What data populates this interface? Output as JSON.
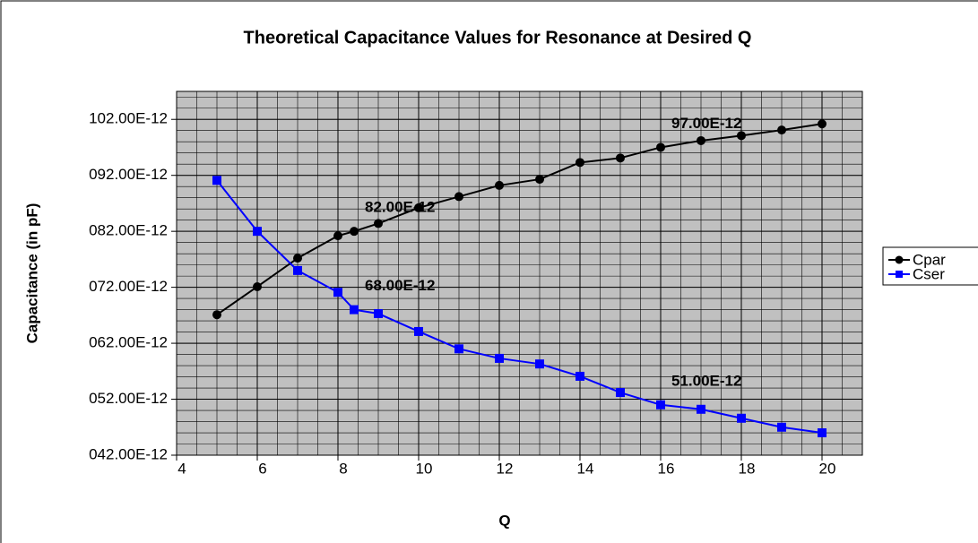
{
  "chart_data": {
    "type": "line",
    "title": "Theoretical Capacitance Values for Resonance at Desired Q",
    "x_label": "Q",
    "y_label": "Capacitance (in pF)",
    "x": [
      5,
      6,
      7,
      8,
      8.4,
      9,
      10,
      11,
      12,
      13,
      14,
      15,
      16,
      17,
      18,
      19,
      20
    ],
    "series": [
      {
        "name": "Cpar",
        "color": "#000000",
        "marker": "circle",
        "values": [
          6.71e-11,
          7.21e-11,
          7.72e-11,
          8.12e-11,
          8.2e-11,
          8.34e-11,
          8.62e-11,
          8.82e-11,
          9.02e-11,
          9.13e-11,
          9.43e-11,
          9.51e-11,
          9.7e-11,
          9.82e-11,
          9.91e-11,
          1.001e-10,
          1.012e-10
        ],
        "value_labels": [
          null,
          null,
          null,
          null,
          "82.00E-12",
          null,
          null,
          null,
          null,
          null,
          null,
          null,
          "97.00E-12",
          null,
          null,
          null,
          null
        ]
      },
      {
        "name": "Cser",
        "color": "#0000ff",
        "marker": "square",
        "values": [
          9.11e-11,
          8.2e-11,
          7.5e-11,
          7.11e-11,
          6.8e-11,
          6.73e-11,
          6.41e-11,
          6.1e-11,
          5.93e-11,
          5.83e-11,
          5.61e-11,
          5.32e-11,
          5.1e-11,
          5.02e-11,
          4.86e-11,
          4.7e-11,
          4.6e-11
        ],
        "value_labels": [
          null,
          null,
          null,
          null,
          "68.00E-12",
          null,
          null,
          null,
          null,
          null,
          null,
          null,
          "51.00E-12",
          null,
          null,
          null,
          null
        ]
      }
    ],
    "xlim": [
      4,
      21
    ],
    "xticks": [
      4,
      6,
      8,
      10,
      12,
      14,
      16,
      18,
      20
    ],
    "ylim": [
      4.2e-11,
      1.07e-10
    ],
    "yticks": [
      {
        "value": 4.2e-11,
        "label": "042.00E-12"
      },
      {
        "value": 5.2e-11,
        "label": "052.00E-12"
      },
      {
        "value": 6.2e-11,
        "label": "062.00E-12"
      },
      {
        "value": 7.2e-11,
        "label": "072.00E-12"
      },
      {
        "value": 8.2e-11,
        "label": "082.00E-12"
      },
      {
        "value": 9.2e-11,
        "label": "092.00E-12"
      },
      {
        "value": 1.02e-10,
        "label": "102.00E-12"
      }
    ],
    "grid": true,
    "minor_grid": {
      "x": 0.5,
      "y": 2e-12
    },
    "plot_background": "#c0c0c0",
    "legend": "right"
  }
}
